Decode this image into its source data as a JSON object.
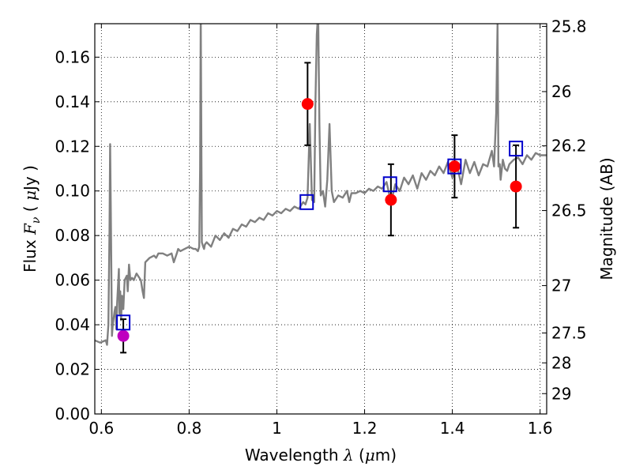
{
  "chart_data": {
    "type": "scatter",
    "xlabel_parts": [
      "Wavelength  ",
      "λ",
      " (",
      "μ",
      "m)"
    ],
    "ylabel_parts": [
      "Flux  ",
      "F",
      "ν",
      "  (  ",
      "μ",
      "Jy  )"
    ],
    "y2label": "Magnitude (AB)",
    "xlim": [
      0.585,
      1.615
    ],
    "ylim": [
      0.0,
      0.175
    ],
    "grid": true,
    "x_ticks": [
      0.6,
      0.8,
      1.0,
      1.2,
      1.4,
      1.6
    ],
    "x_tick_labels": [
      "0.6",
      "0.8",
      "1",
      "1.2",
      "1.4",
      "1.6"
    ],
    "y_ticks": [
      0.0,
      0.02,
      0.04,
      0.06,
      0.08,
      0.1,
      0.12,
      0.14,
      0.16
    ],
    "y_tick_labels": [
      "0.00",
      "0.02",
      "0.04",
      "0.06",
      "0.08",
      "0.10",
      "0.12",
      "0.14",
      "0.16"
    ],
    "y2_ticks": [
      25.8,
      26,
      26.2,
      26.5,
      27,
      27.5,
      28,
      29
    ],
    "y2_tick_labels": [
      "25.8",
      "26",
      "26.2",
      "26.5",
      "27",
      "27.5",
      "28",
      "29"
    ],
    "colors": {
      "spectrum": "#808080",
      "observed": "#ff0000",
      "observed_optical": "#bf00bf",
      "model": "#0000cc",
      "errorbar": "#000000"
    },
    "spectrum": {
      "x": [
        0.585,
        0.597,
        0.61,
        0.613,
        0.616,
        0.6185,
        0.62,
        0.6215,
        0.624,
        0.626,
        0.63,
        0.632,
        0.634,
        0.636,
        0.64,
        0.641,
        0.643,
        0.645,
        0.647,
        0.65,
        0.653,
        0.658,
        0.66,
        0.663,
        0.666,
        0.67,
        0.674,
        0.68,
        0.69,
        0.694,
        0.697,
        0.7,
        0.71,
        0.72,
        0.725,
        0.73,
        0.74,
        0.75,
        0.76,
        0.765,
        0.772,
        0.775,
        0.78,
        0.79,
        0.8,
        0.81,
        0.815,
        0.82,
        0.823,
        0.825,
        0.8265,
        0.829,
        0.832,
        0.834,
        0.836,
        0.84,
        0.85,
        0.86,
        0.87,
        0.88,
        0.89,
        0.9,
        0.91,
        0.92,
        0.93,
        0.94,
        0.95,
        0.96,
        0.97,
        0.98,
        0.99,
        1.0,
        1.01,
        1.02,
        1.03,
        1.04,
        1.05,
        1.06,
        1.065,
        1.07,
        1.075,
        1.08,
        1.085,
        1.088,
        1.091,
        1.094,
        1.097,
        1.1,
        1.105,
        1.11,
        1.115,
        1.12,
        1.125,
        1.13,
        1.14,
        1.15,
        1.16,
        1.165,
        1.17,
        1.18,
        1.19,
        1.2,
        1.21,
        1.22,
        1.23,
        1.24,
        1.25,
        1.26,
        1.27,
        1.28,
        1.29,
        1.3,
        1.31,
        1.32,
        1.33,
        1.34,
        1.35,
        1.36,
        1.37,
        1.38,
        1.39,
        1.4,
        1.41,
        1.42,
        1.43,
        1.44,
        1.45,
        1.46,
        1.47,
        1.48,
        1.49,
        1.495,
        1.5,
        1.503,
        1.505,
        1.508,
        1.51,
        1.515,
        1.52,
        1.525,
        1.53,
        1.54,
        1.55,
        1.56,
        1.57,
        1.58,
        1.59,
        1.6,
        1.615
      ],
      "y": [
        0.033,
        0.032,
        0.033,
        0.031,
        0.04,
        0.082,
        0.121,
        0.09,
        0.035,
        0.04,
        0.046,
        0.048,
        0.038,
        0.05,
        0.065,
        0.045,
        0.055,
        0.042,
        0.053,
        0.047,
        0.06,
        0.062,
        0.055,
        0.067,
        0.06,
        0.061,
        0.06,
        0.063,
        0.06,
        0.055,
        0.052,
        0.068,
        0.07,
        0.071,
        0.07,
        0.072,
        0.072,
        0.071,
        0.072,
        0.068,
        0.072,
        0.074,
        0.073,
        0.074,
        0.075,
        0.074,
        0.074,
        0.073,
        0.075,
        0.11,
        0.18,
        0.077,
        0.075,
        0.074,
        0.076,
        0.077,
        0.075,
        0.08,
        0.078,
        0.081,
        0.079,
        0.083,
        0.082,
        0.085,
        0.084,
        0.087,
        0.086,
        0.088,
        0.087,
        0.09,
        0.089,
        0.091,
        0.09,
        0.092,
        0.091,
        0.093,
        0.092,
        0.095,
        0.094,
        0.097,
        0.13,
        0.096,
        0.095,
        0.14,
        0.17,
        0.18,
        0.13,
        0.098,
        0.1,
        0.093,
        0.105,
        0.13,
        0.1,
        0.095,
        0.098,
        0.097,
        0.1,
        0.095,
        0.099,
        0.099,
        0.1,
        0.099,
        0.101,
        0.1,
        0.102,
        0.101,
        0.104,
        0.095,
        0.103,
        0.1,
        0.106,
        0.103,
        0.107,
        0.101,
        0.108,
        0.105,
        0.109,
        0.107,
        0.111,
        0.108,
        0.113,
        0.106,
        0.112,
        0.103,
        0.114,
        0.108,
        0.113,
        0.107,
        0.112,
        0.111,
        0.118,
        0.111,
        0.135,
        0.175,
        0.111,
        0.112,
        0.105,
        0.114,
        0.11,
        0.109,
        0.112,
        0.114,
        0.115,
        0.112,
        0.116,
        0.114,
        0.117,
        0.116,
        0.116
      ]
    },
    "observed": [
      {
        "x": 1.07,
        "y": 0.139,
        "err": 0.0185,
        "color_key": "observed"
      },
      {
        "x": 1.26,
        "y": 0.096,
        "err": 0.016,
        "color_key": "observed"
      },
      {
        "x": 1.405,
        "y": 0.111,
        "err": 0.014,
        "color_key": "observed"
      },
      {
        "x": 1.545,
        "y": 0.102,
        "err": 0.0185,
        "color_key": "observed"
      },
      {
        "x": 0.65,
        "y": 0.035,
        "err": 0.0075,
        "color_key": "observed_optical"
      }
    ],
    "model": [
      {
        "x": 0.65,
        "y": 0.041
      },
      {
        "x": 1.068,
        "y": 0.095
      },
      {
        "x": 1.258,
        "y": 0.103
      },
      {
        "x": 1.405,
        "y": 0.111
      },
      {
        "x": 1.545,
        "y": 0.119
      }
    ]
  }
}
